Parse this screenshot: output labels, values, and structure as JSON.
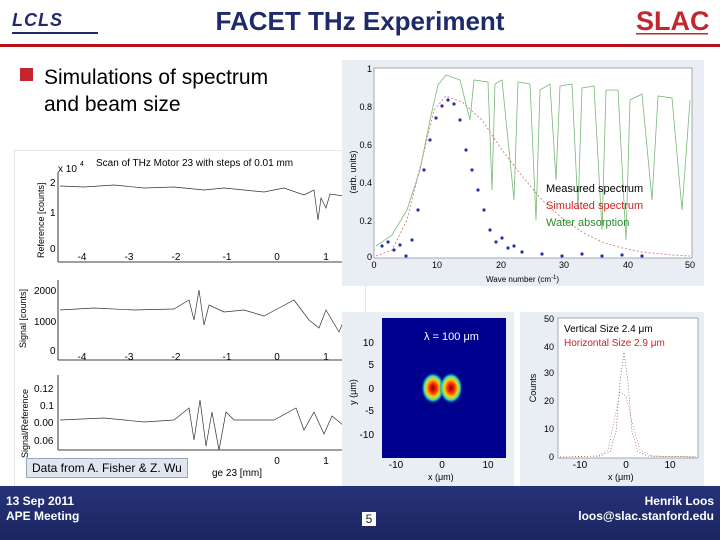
{
  "header": {
    "title": "FACET THz Experiment",
    "logo_left": "LCLS",
    "logo_right": "SLAC"
  },
  "bullet": {
    "line1": "Simulations of spectrum",
    "line2": "and beam size"
  },
  "scan_plot": {
    "exponent": "x 10",
    "exponent_sup": "4",
    "title": "Scan of THz Motor 23 with steps of 0.01 mm",
    "ylabel_top": "Reference [counts]",
    "ylabel_mid": "Signal [counts]",
    "ylabel_bot": "Signal/Reference",
    "xlabel_fragment": "ge 23 [mm]",
    "top_yticks": [
      "2",
      "1",
      "0"
    ],
    "mid_yticks": [
      "2000",
      "1000",
      "0"
    ],
    "bot_yticks": [
      "0.12",
      "0.1",
      "0.00",
      "0.06"
    ],
    "xticks": [
      "-4",
      "-3",
      "-2",
      "-1",
      "0",
      "1"
    ]
  },
  "spectrum_plot": {
    "ylabel": "(arb. units)",
    "xlabel": "Wave number  (cm",
    "xlabel_sup": "-1",
    "xlabel_end": ")",
    "yticks": [
      "1",
      "0.8",
      "0.6",
      "0.4",
      "0.2",
      "0"
    ],
    "xticks": [
      "0",
      "10",
      "20",
      "30",
      "40",
      "50"
    ],
    "legend": [
      {
        "label": "Measured spectrum",
        "color": "#000000"
      },
      {
        "label": "Simulated spectrum",
        "color": "#cc2222"
      },
      {
        "label": "Water absorption",
        "color": "#2a8a2a"
      }
    ]
  },
  "beam_plot": {
    "annotation": "λ = 100 μm",
    "ylabel": "y  (μm)",
    "xlabel": "x  (μm)",
    "yticks": [
      "10",
      "5",
      "0",
      "-5",
      "-10"
    ],
    "xticks": [
      "-10",
      "0",
      "10"
    ]
  },
  "hist_plot": {
    "ylabel": "Counts",
    "xlabel": "x  (μm)",
    "line1": "Vertical Size 2.4 μm",
    "line2": "Horizontal Size 2.9 μm",
    "yticks": [
      "50",
      "40",
      "30",
      "20",
      "10",
      "0"
    ],
    "xticks": [
      "-10",
      "0",
      "10"
    ]
  },
  "caption": "Data from A. Fisher & Z. Wu",
  "footer": {
    "date": "13 Sep 2011",
    "event": "APE Meeting",
    "page": "5",
    "author": "Henrik Loos",
    "email": "loos@slac.stanford.edu"
  },
  "colors": {
    "brand_blue": "#1f2a6b",
    "brand_red": "#c1272d"
  }
}
